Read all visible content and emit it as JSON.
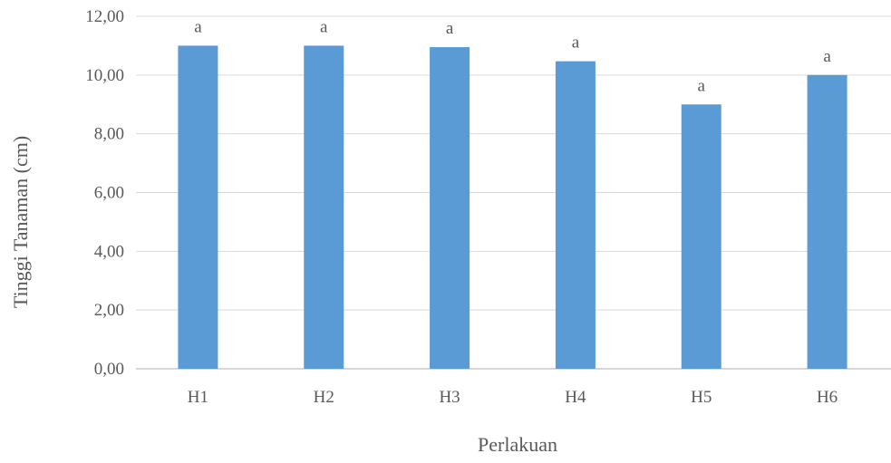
{
  "chart_data": {
    "type": "bar",
    "title": "",
    "xlabel": "Perlakuan",
    "ylabel": "Tinggi Tanaman (cm)",
    "categories": [
      "H1",
      "H2",
      "H3",
      "H4",
      "H5",
      "H6"
    ],
    "values": [
      11.0,
      11.0,
      10.95,
      10.47,
      9.0,
      10.0
    ],
    "data_labels": [
      "a",
      "a",
      "a",
      "a",
      "a",
      "a"
    ],
    "ylim": [
      0,
      12
    ],
    "yticks": [
      "0,00",
      "2,00",
      "4,00",
      "6,00",
      "8,00",
      "10,00",
      "12,00"
    ],
    "grid": true,
    "legend": "none",
    "colors": {
      "bar": "#5b9bd5",
      "grid": "#d9d9d9",
      "text": "#595959"
    }
  }
}
